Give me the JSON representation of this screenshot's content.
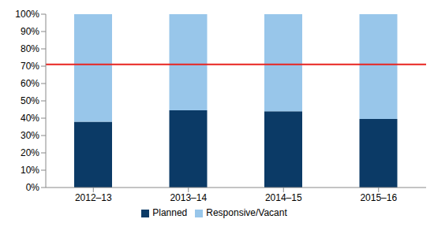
{
  "chart_data": {
    "type": "bar",
    "stacked": true,
    "categories": [
      "2012–13",
      "2013–14",
      "2014–15",
      "2015–16"
    ],
    "series": [
      {
        "name": "Planned",
        "color": "#0b3a66",
        "values": [
          38,
          44.5,
          44,
          39.5
        ]
      },
      {
        "name": "Responsive/Vacant",
        "color": "#98c6ea",
        "values": [
          62,
          55.5,
          56,
          60.5
        ]
      }
    ],
    "ylim": [
      0,
      100
    ],
    "yticks": [
      {
        "value": 0,
        "label": "0%"
      },
      {
        "value": 10,
        "label": "10%"
      },
      {
        "value": 20,
        "label": "20%"
      },
      {
        "value": 30,
        "label": "30%"
      },
      {
        "value": 40,
        "label": "40%"
      },
      {
        "value": 50,
        "label": "50%"
      },
      {
        "value": 60,
        "label": "60%"
      },
      {
        "value": 70,
        "label": "70%"
      },
      {
        "value": 80,
        "label": "80%"
      },
      {
        "value": 90,
        "label": "90%"
      },
      {
        "value": 100,
        "label": "100%"
      }
    ],
    "target": {
      "value": 71,
      "color": "#e8231f"
    },
    "grid": false,
    "legend": "bottom"
  }
}
